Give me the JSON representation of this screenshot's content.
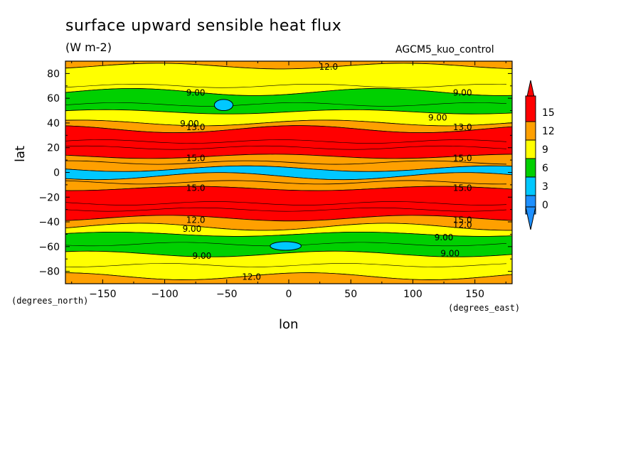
{
  "chart_data": {
    "type": "heatmap",
    "title": "surface upward sensible heat flux",
    "units": "(W m-2)",
    "dataset": "AGCM5_kuo_control",
    "xlabel": "lon",
    "ylabel": "lat",
    "x_units": "(degrees_east)",
    "y_units": "(degrees_north)",
    "xlim": [
      -180,
      180
    ],
    "ylim": [
      -90,
      90
    ],
    "x_ticks": [
      -150,
      -100,
      -50,
      0,
      50,
      100,
      150
    ],
    "y_ticks": [
      -80,
      -60,
      -40,
      -20,
      0,
      20,
      40,
      60,
      80
    ],
    "colorbar": {
      "levels": [
        0,
        3,
        6,
        9,
        12,
        15
      ],
      "colors": [
        "#1e90ff",
        "#00c8ff",
        "#00d000",
        "#ffff00",
        "#ffa000",
        "#ff0000"
      ],
      "below_color": "#1e90ff",
      "above_color": "#ff0000"
    },
    "lat_bands": [
      {
        "lat_from": 90,
        "lat_to": 86,
        "value": "12-15"
      },
      {
        "lat_from": 86,
        "lat_to": 65,
        "value": "9-12"
      },
      {
        "lat_from": 65,
        "lat_to": 49,
        "value": "6-9"
      },
      {
        "lat_from": 49,
        "lat_to": 40,
        "value": "9-12"
      },
      {
        "lat_from": 40,
        "lat_to": 35,
        "value": "12-15"
      },
      {
        "lat_from": 35,
        "lat_to": 13,
        "value": ">15"
      },
      {
        "lat_from": 13,
        "lat_to": 3,
        "value": "12-15"
      },
      {
        "lat_from": 3,
        "lat_to": -3,
        "value": "3-6"
      },
      {
        "lat_from": -3,
        "lat_to": -13,
        "value": "12-15"
      },
      {
        "lat_from": -13,
        "lat_to": -37,
        "value": ">15"
      },
      {
        "lat_from": -37,
        "lat_to": -44,
        "value": "12-15"
      },
      {
        "lat_from": -44,
        "lat_to": -50,
        "value": "9-12"
      },
      {
        "lat_from": -50,
        "lat_to": -66,
        "value": "6-9"
      },
      {
        "lat_from": -66,
        "lat_to": -84,
        "value": "9-12"
      },
      {
        "lat_from": -84,
        "lat_to": -90,
        "value": "12-15"
      }
    ],
    "contour_labels": [
      {
        "text": "12.0",
        "lon": 32,
        "lat": 86
      },
      {
        "text": "9.00",
        "lon": -75,
        "lat": 65
      },
      {
        "text": "9.00",
        "lon": 140,
        "lat": 65
      },
      {
        "text": "9.00",
        "lon": 120,
        "lat": 45
      },
      {
        "text": "9.00",
        "lon": -80,
        "lat": 40
      },
      {
        "text": "13.0",
        "lon": -75,
        "lat": 37
      },
      {
        "text": "13.0",
        "lon": 140,
        "lat": 37
      },
      {
        "text": "15.0",
        "lon": -75,
        "lat": 12
      },
      {
        "text": "15.0",
        "lon": 140,
        "lat": 12
      },
      {
        "text": "15.0",
        "lon": -75,
        "lat": -12
      },
      {
        "text": "15.0",
        "lon": 140,
        "lat": -12
      },
      {
        "text": "12.0",
        "lon": -75,
        "lat": -38
      },
      {
        "text": "15.0",
        "lon": 140,
        "lat": -38
      },
      {
        "text": "12.0",
        "lon": 140,
        "lat": -42
      },
      {
        "text": "9.00",
        "lon": -78,
        "lat": -45
      },
      {
        "text": "9.00",
        "lon": 125,
        "lat": -52
      },
      {
        "text": "9.00",
        "lon": 130,
        "lat": -65
      },
      {
        "text": "9.00",
        "lon": -70,
        "lat": -67
      },
      {
        "text": "12.0",
        "lon": -30,
        "lat": -84
      }
    ],
    "blobs": [
      {
        "lon_from": -60,
        "lon_to": -45,
        "lat_from": 59,
        "lat_to": 50,
        "value": "3-6"
      },
      {
        "lon_from": 10,
        "lon_to": -15,
        "lat_from": -56,
        "lat_to": -63,
        "value": "3-6"
      }
    ]
  }
}
